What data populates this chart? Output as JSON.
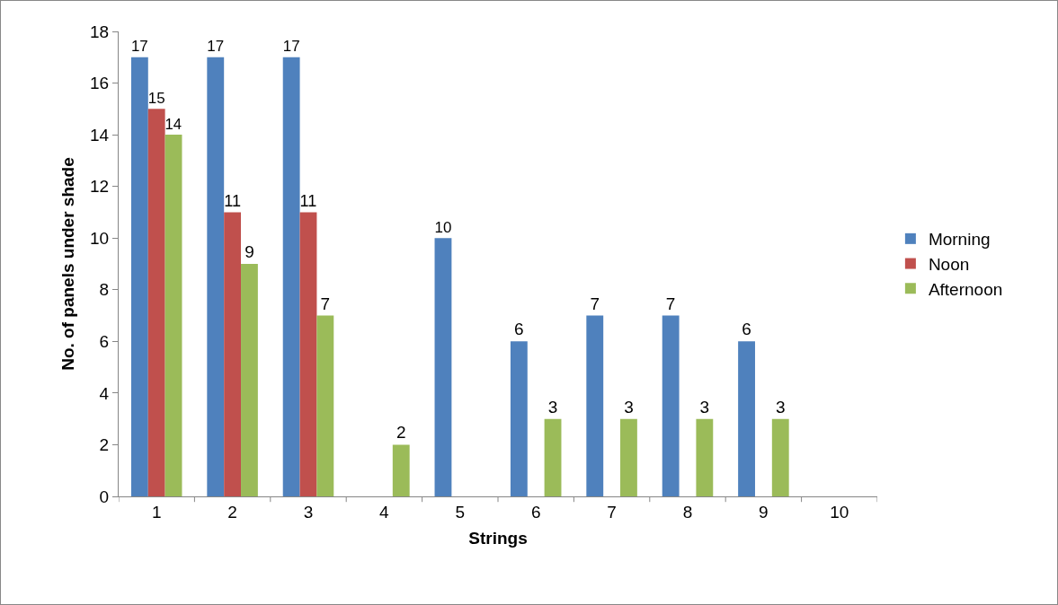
{
  "chart_data": {
    "type": "bar",
    "xlabel": "Strings",
    "ylabel": "No. of panels under shade",
    "categories": [
      "1",
      "2",
      "3",
      "4",
      "5",
      "6",
      "7",
      "8",
      "9",
      "10"
    ],
    "series": [
      {
        "name": "Morning",
        "color": "#4f81bd",
        "values": [
          17,
          17,
          17,
          null,
          10,
          6,
          7,
          7,
          6,
          null
        ]
      },
      {
        "name": "Noon",
        "color": "#c0504d",
        "values": [
          15,
          11,
          11,
          null,
          null,
          null,
          null,
          null,
          null,
          null
        ]
      },
      {
        "name": "Afternoon",
        "color": "#9bbb59",
        "values": [
          14,
          9,
          7,
          2,
          null,
          3,
          3,
          3,
          3,
          null
        ]
      }
    ],
    "ylim": [
      0,
      18
    ],
    "yticks": [
      0,
      2,
      4,
      6,
      8,
      10,
      12,
      14,
      16,
      18
    ],
    "grid": false,
    "legend": "right",
    "data_labels": true
  }
}
